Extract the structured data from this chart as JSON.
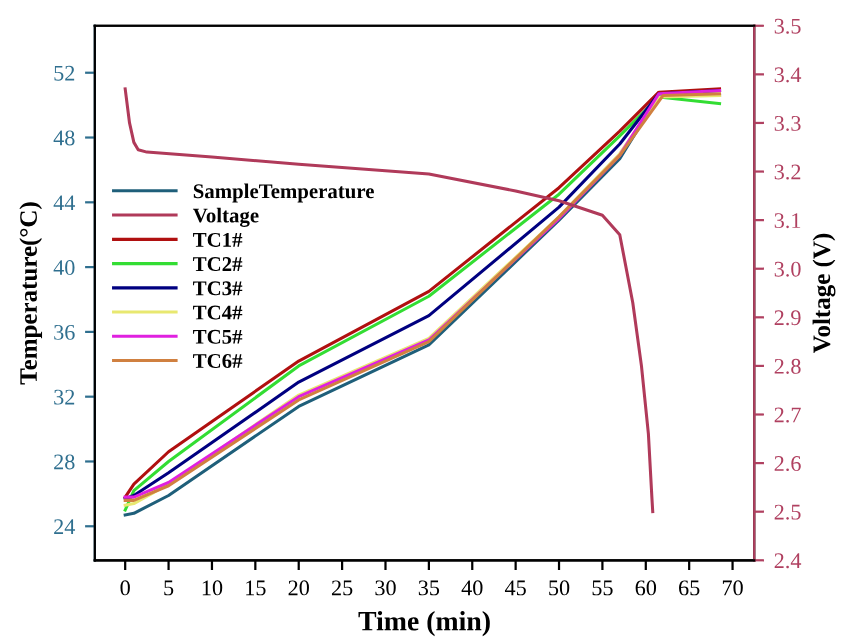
{
  "chart_data": {
    "type": "line",
    "xlabel": "Time (min)",
    "ylabel": "Temperature(°C)",
    "y2label": "Voltage (V)",
    "xlim": [
      -3.5,
      72.5
    ],
    "xticks": [
      0,
      5,
      10,
      15,
      20,
      25,
      30,
      35,
      40,
      45,
      50,
      55,
      60,
      65,
      70
    ],
    "ylim": [
      21.9,
      54.9
    ],
    "yticks": [
      24,
      28,
      32,
      36,
      40,
      44,
      48,
      52
    ],
    "y2lim": [
      2.4,
      3.5
    ],
    "y2ticks": [
      2.4,
      2.5,
      2.6,
      2.7,
      2.8,
      2.9,
      {
        "value": 3.0,
        "label": "3.0"
      },
      3.1,
      3.2,
      3.3,
      3.4,
      3.5
    ],
    "legend": "top left",
    "grid": false,
    "marker": "none",
    "line_style": "solid",
    "series": [
      {
        "name": "SampleTemperature",
        "color": "#1f5f7a",
        "x": [
          0,
          1,
          5,
          20,
          35,
          50,
          57,
          61.5,
          68.5
        ],
        "values": [
          24.7,
          24.8,
          25.9,
          31.4,
          35.2,
          42.9,
          46.7,
          50.6,
          50.6
        ]
      },
      {
        "name": "Voltage",
        "color": "#b03a5a",
        "axis": "y2",
        "x": [
          0,
          0.5,
          1,
          1.5,
          2.5,
          10,
          20,
          35,
          45,
          50,
          55,
          57,
          58.5,
          59.5,
          60.3,
          60.7,
          60.8
        ],
        "values": [
          3.37,
          3.3,
          3.26,
          3.245,
          3.24,
          3.23,
          3.215,
          3.195,
          3.16,
          3.14,
          3.11,
          3.07,
          2.93,
          2.8,
          2.66,
          2.53,
          2.5
        ]
      },
      {
        "name": "TC1#",
        "color": "#b01010",
        "x": [
          0,
          1,
          5,
          20,
          35,
          50,
          57,
          61.5,
          68.5
        ],
        "values": [
          25.8,
          26.6,
          28.6,
          34.2,
          38.5,
          44.9,
          48.4,
          50.8,
          51.0
        ]
      },
      {
        "name": "TC2#",
        "color": "#33dd33",
        "x": [
          0,
          1,
          5,
          20,
          35,
          50,
          57,
          61.5,
          68.5
        ],
        "values": [
          25.0,
          26.2,
          28.0,
          33.9,
          38.2,
          44.5,
          48.1,
          50.5,
          50.1
        ]
      },
      {
        "name": "TC3#",
        "color": "#000080",
        "x": [
          0,
          1,
          5,
          20,
          35,
          50,
          57,
          61.5,
          68.5
        ],
        "values": [
          25.7,
          25.9,
          27.3,
          32.9,
          37.0,
          43.7,
          47.6,
          50.7,
          50.9
        ]
      },
      {
        "name": "TC4#",
        "color": "#e8e870",
        "x": [
          0,
          1,
          5,
          20,
          35,
          50,
          57,
          61.5,
          68.5
        ],
        "values": [
          25.3,
          25.4,
          26.6,
          32.1,
          35.6,
          43.1,
          47.0,
          50.5,
          50.6
        ]
      },
      {
        "name": "TC5#",
        "color": "#e020e0",
        "x": [
          0,
          1,
          5,
          20,
          35,
          50,
          57,
          61.5,
          68.5
        ],
        "values": [
          25.8,
          25.8,
          26.7,
          32.0,
          35.5,
          43.0,
          46.9,
          50.7,
          50.9
        ]
      },
      {
        "name": "TC6#",
        "color": "#d08040",
        "x": [
          0,
          1,
          5,
          20,
          35,
          50,
          57,
          62,
          68.5
        ],
        "values": [
          25.6,
          25.6,
          26.5,
          31.8,
          35.4,
          43.1,
          46.9,
          50.6,
          50.7
        ]
      }
    ]
  }
}
